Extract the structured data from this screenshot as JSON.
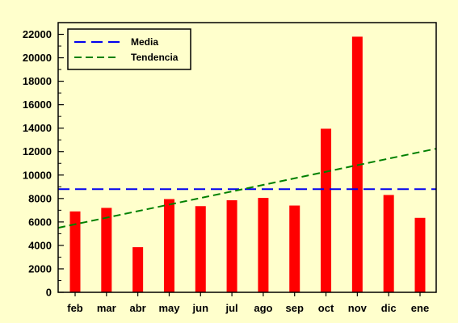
{
  "chart_data": {
    "type": "bar",
    "categories": [
      "feb",
      "mar",
      "abr",
      "may",
      "jun",
      "jul",
      "ago",
      "sep",
      "oct",
      "nov",
      "dic",
      "ene"
    ],
    "values": [
      6900,
      7200,
      3850,
      7950,
      7350,
      7850,
      8050,
      7400,
      13950,
      21800,
      8300,
      6350
    ],
    "ylim": [
      0,
      23000
    ],
    "yticks": [
      0,
      2000,
      4000,
      6000,
      8000,
      10000,
      12000,
      14000,
      16000,
      18000,
      20000,
      22000
    ],
    "reference_lines": [
      {
        "name": "Media",
        "type": "horizontal",
        "value": 8800,
        "color": "#0000ee",
        "dash": "long-dash"
      },
      {
        "name": "Tendencia",
        "type": "trend",
        "start": 5500,
        "end": 12250,
        "color": "#008000",
        "dash": "dash"
      }
    ],
    "bar_color": "#ff0000",
    "background_color": "#ffffcc",
    "grid": false,
    "legend": {
      "position": "top-left",
      "entries": [
        "Media",
        "Tendencia"
      ]
    }
  }
}
